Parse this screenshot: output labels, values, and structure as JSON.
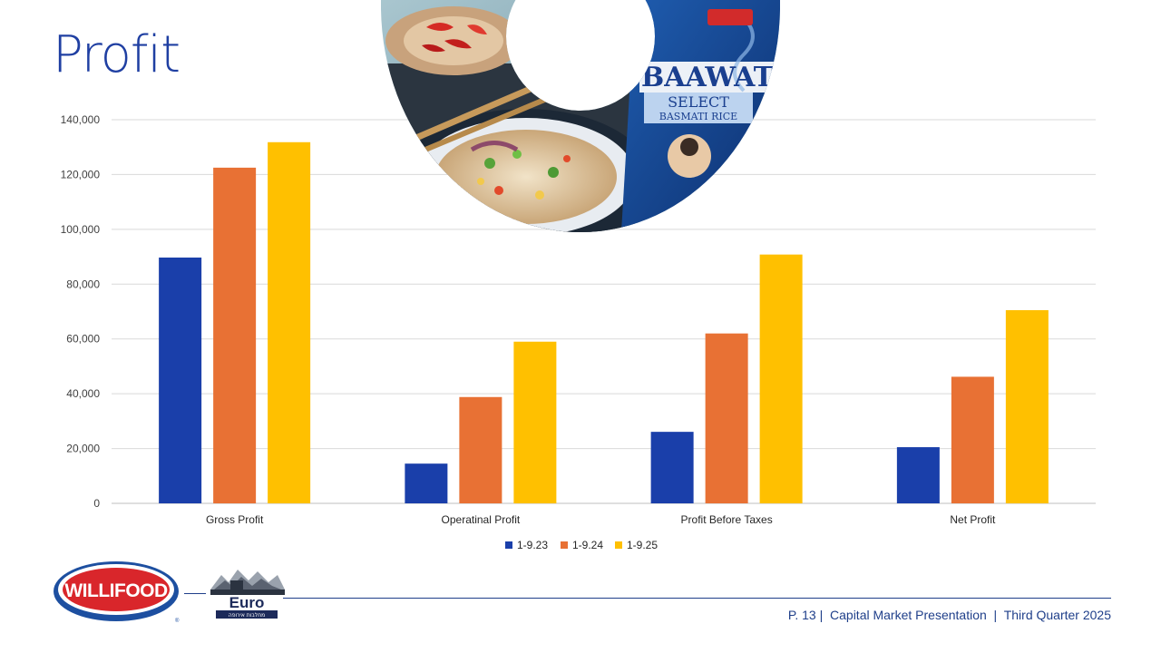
{
  "slide": {
    "title": "Profit",
    "footer": "P. 13 |  Capital Market Presentation  |  Third Quarter 2025"
  },
  "logos": {
    "willifood": "WILLIFOOD",
    "euro": "Euro",
    "euro_sub": "מחלבות אירופה",
    "package_brand": "BAAWAT",
    "package_select": "SELECT",
    "package_product": "BASMATI RICE"
  },
  "colors": {
    "series": [
      "#1a3faa",
      "#e87134",
      "#ffc000"
    ],
    "grid": "#d9d9d9",
    "title": "#1f3fa2"
  },
  "chart_data": {
    "type": "bar",
    "categories": [
      "Gross Profit",
      "Operatinal Profit",
      "Profit Before Taxes",
      "Net Profit"
    ],
    "series": [
      {
        "name": "1-9.23",
        "values": [
          89700,
          14500,
          26100,
          20500
        ]
      },
      {
        "name": "1-9.24",
        "values": [
          122500,
          38800,
          62000,
          46200
        ]
      },
      {
        "name": "1-9.25",
        "values": [
          131800,
          59000,
          90800,
          70500
        ]
      }
    ],
    "ylim": [
      0,
      140000
    ],
    "yticks": [
      "0",
      "20,000",
      "40,000",
      "60,000",
      "80,000",
      "100,000",
      "120,000",
      "140,000"
    ],
    "ytick_values": [
      0,
      20000,
      40000,
      60000,
      80000,
      100000,
      120000,
      140000
    ],
    "grid": true,
    "legend": "bottom-center",
    "title": "",
    "xlabel": "",
    "ylabel": ""
  }
}
